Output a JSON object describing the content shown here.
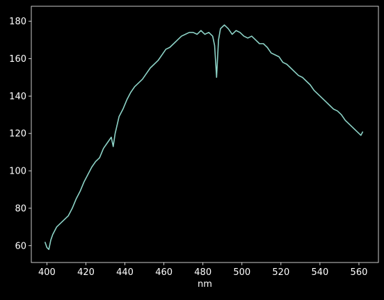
{
  "chart_data": {
    "type": "line",
    "title": "",
    "xlabel": "nm",
    "ylabel": "",
    "xlim": [
      392,
      570
    ],
    "ylim": [
      51,
      188
    ],
    "xticks": [
      400,
      420,
      440,
      460,
      480,
      500,
      520,
      540,
      560
    ],
    "yticks": [
      60,
      80,
      100,
      120,
      140,
      160,
      180
    ],
    "grid": false,
    "legend": "none",
    "colors": {
      "background": "#000000",
      "line": "#8dd3c7",
      "axes": "#ffffff"
    },
    "series": [
      {
        "x": [
          399,
          400,
          401,
          402,
          403,
          405,
          407,
          409,
          411,
          413,
          415,
          417,
          419,
          421,
          423,
          425,
          427,
          429,
          431,
          433,
          434,
          435,
          437,
          439,
          441,
          443,
          445,
          447,
          449,
          451,
          453,
          455,
          457,
          459,
          461,
          463,
          465,
          467,
          469,
          471,
          473,
          475,
          477,
          479,
          481,
          483,
          485,
          486,
          487,
          488,
          489,
          490,
          491,
          493,
          495,
          497,
          499,
          501,
          503,
          505,
          507,
          509,
          511,
          513,
          515,
          517,
          519,
          521,
          523,
          525,
          527,
          529,
          531,
          533,
          535,
          537,
          539,
          541,
          543,
          545,
          547,
          549,
          551,
          553,
          555,
          557,
          559,
          561,
          562
        ],
        "y": [
          62,
          59,
          58,
          63,
          66,
          70,
          72,
          74,
          76,
          80,
          85,
          89,
          94,
          98,
          102,
          105,
          107,
          112,
          115,
          118,
          113,
          120,
          129,
          133,
          138,
          142,
          145,
          147,
          149,
          152,
          155,
          157,
          159,
          162,
          165,
          166,
          168,
          170,
          172,
          173,
          174,
          174,
          173,
          175,
          173,
          174,
          172,
          167,
          150,
          170,
          176,
          177,
          178,
          176,
          173,
          175,
          174,
          172,
          171,
          172,
          170,
          168,
          168,
          166,
          163,
          162,
          161,
          158,
          157,
          155,
          153,
          151,
          150,
          148,
          146,
          143,
          141,
          139,
          137,
          135,
          133,
          132,
          130,
          127,
          125,
          123,
          121,
          119,
          121
        ]
      }
    ]
  }
}
